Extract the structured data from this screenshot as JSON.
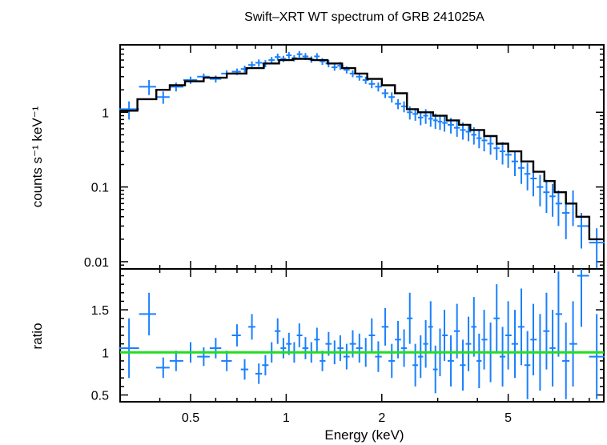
{
  "chart_data": [
    {
      "type": "scatter",
      "title": "Swift–XRT WT spectrum of GRB 241025A",
      "ylabel": "counts s⁻¹ keV⁻¹",
      "xscale": "log",
      "yscale": "log",
      "xlim": [
        0.3,
        10
      ],
      "ylim": [
        0.008,
        8
      ],
      "yticks": [
        {
          "value": 1,
          "label": "1"
        },
        {
          "value": 0.1,
          "label": "0.1"
        },
        {
          "value": 0.01,
          "label": "0.01"
        }
      ],
      "series": [
        {
          "type": "errorbar",
          "color": "#1a80ff",
          "x": [
            0.32,
            0.37,
            0.41,
            0.45,
            0.5,
            0.55,
            0.6,
            0.65,
            0.7,
            0.74,
            0.78,
            0.82,
            0.86,
            0.9,
            0.94,
            0.98,
            1.02,
            1.06,
            1.1,
            1.15,
            1.2,
            1.25,
            1.3,
            1.36,
            1.42,
            1.48,
            1.55,
            1.62,
            1.7,
            1.78,
            1.86,
            1.95,
            2.05,
            2.15,
            2.25,
            2.35,
            2.45,
            2.55,
            2.65,
            2.75,
            2.85,
            2.95,
            3.05,
            3.15,
            3.3,
            3.45,
            3.6,
            3.75,
            3.9,
            4.05,
            4.2,
            4.4,
            4.6,
            4.8,
            5.0,
            5.25,
            5.5,
            5.75,
            6.0,
            6.3,
            6.6,
            6.9,
            7.2,
            7.6,
            8.0,
            8.5,
            9.5
          ],
          "y": [
            1.1,
            2.2,
            1.6,
            2.2,
            2.7,
            3.0,
            2.8,
            3.3,
            3.5,
            3.8,
            4.3,
            4.6,
            4.5,
            5.0,
            5.5,
            5.2,
            5.8,
            5.3,
            6.0,
            5.6,
            5.1,
            5.6,
            4.8,
            4.5,
            4.0,
            4.2,
            3.7,
            3.3,
            3.0,
            2.7,
            2.4,
            2.2,
            1.8,
            1.6,
            1.3,
            1.2,
            1.0,
            0.95,
            0.85,
            0.9,
            0.82,
            0.78,
            0.75,
            0.72,
            0.68,
            0.62,
            0.58,
            0.55,
            0.5,
            0.45,
            0.42,
            0.38,
            0.33,
            0.3,
            0.27,
            0.22,
            0.18,
            0.15,
            0.13,
            0.1,
            0.085,
            0.075,
            0.06,
            0.045,
            0.06,
            0.03,
            0.018
          ],
          "yerr": [
            0.3,
            0.5,
            0.3,
            0.3,
            0.3,
            0.3,
            0.3,
            0.35,
            0.35,
            0.4,
            0.5,
            0.5,
            0.5,
            0.5,
            0.6,
            0.5,
            0.6,
            0.5,
            0.6,
            0.6,
            0.5,
            0.6,
            0.5,
            0.5,
            0.4,
            0.5,
            0.4,
            0.35,
            0.35,
            0.3,
            0.3,
            0.3,
            0.25,
            0.25,
            0.2,
            0.2,
            0.2,
            0.18,
            0.18,
            0.2,
            0.18,
            0.18,
            0.17,
            0.17,
            0.16,
            0.15,
            0.15,
            0.14,
            0.13,
            0.12,
            0.12,
            0.11,
            0.1,
            0.1,
            0.09,
            0.08,
            0.07,
            0.06,
            0.055,
            0.045,
            0.04,
            0.035,
            0.03,
            0.025,
            0.03,
            0.015,
            0.01
          ]
        },
        {
          "type": "step",
          "color": "#000000",
          "x": [
            0.3,
            0.34,
            0.39,
            0.43,
            0.48,
            0.55,
            0.65,
            0.75,
            0.85,
            0.95,
            1.05,
            1.2,
            1.35,
            1.5,
            1.65,
            1.8,
            2.0,
            2.2,
            2.4,
            2.6,
            2.9,
            3.2,
            3.5,
            3.8,
            4.2,
            4.6,
            5.0,
            5.5,
            6.0,
            6.5,
            7.0,
            7.6,
            8.2,
            9.0,
            10.0
          ],
          "y": [
            1.05,
            1.5,
            2.0,
            2.3,
            2.6,
            2.9,
            3.3,
            3.9,
            4.5,
            5.0,
            5.2,
            5.0,
            4.5,
            3.9,
            3.3,
            2.8,
            2.3,
            1.8,
            1.1,
            1.0,
            0.9,
            0.78,
            0.68,
            0.58,
            0.48,
            0.38,
            0.3,
            0.22,
            0.16,
            0.12,
            0.085,
            0.06,
            0.04,
            0.02,
            0.02
          ]
        }
      ]
    },
    {
      "type": "scatter",
      "xlabel": "Energy (keV)",
      "ylabel": "ratio",
      "xscale": "log",
      "xlim": [
        0.3,
        10
      ],
      "ylim": [
        0.42,
        1.98
      ],
      "xticks": [
        {
          "value": 0.5,
          "label": "0.5"
        },
        {
          "value": 1,
          "label": "1"
        },
        {
          "value": 2,
          "label": "2"
        },
        {
          "value": 5,
          "label": "5"
        }
      ],
      "yticks": [
        {
          "value": 0.5,
          "label": "0.5"
        },
        {
          "value": 1,
          "label": "1"
        },
        {
          "value": 1.5,
          "label": "1.5"
        }
      ],
      "reference_line": {
        "y": 1,
        "color": "#22dd22"
      },
      "series": [
        {
          "type": "errorbar",
          "color": "#1a80ff",
          "x": [
            0.32,
            0.37,
            0.41,
            0.45,
            0.5,
            0.55,
            0.6,
            0.65,
            0.7,
            0.74,
            0.78,
            0.82,
            0.86,
            0.9,
            0.94,
            0.98,
            1.02,
            1.06,
            1.1,
            1.15,
            1.2,
            1.25,
            1.3,
            1.36,
            1.42,
            1.48,
            1.55,
            1.62,
            1.7,
            1.78,
            1.86,
            1.95,
            2.05,
            2.15,
            2.25,
            2.35,
            2.45,
            2.55,
            2.65,
            2.75,
            2.85,
            2.95,
            3.05,
            3.15,
            3.3,
            3.45,
            3.6,
            3.75,
            3.9,
            4.05,
            4.2,
            4.4,
            4.6,
            4.8,
            5.0,
            5.25,
            5.5,
            5.75,
            6.0,
            6.3,
            6.6,
            6.9,
            7.2,
            7.6,
            8.0,
            8.5,
            9.5
          ],
          "y": [
            1.05,
            1.45,
            0.82,
            0.9,
            1.0,
            0.95,
            1.05,
            0.9,
            1.2,
            0.8,
            1.3,
            0.75,
            0.85,
            1.0,
            1.25,
            1.05,
            1.1,
            1.0,
            1.2,
            1.05,
            1.0,
            1.15,
            0.9,
            1.1,
            1.0,
            1.05,
            0.95,
            1.1,
            1.05,
            1.0,
            1.2,
            0.95,
            1.3,
            0.9,
            1.15,
            1.05,
            1.4,
            0.85,
            0.95,
            1.1,
            1.3,
            0.8,
            1.0,
            1.2,
            0.9,
            1.25,
            0.85,
            1.1,
            1.3,
            0.9,
            1.15,
            1.0,
            1.4,
            0.95,
            1.2,
            1.1,
            1.3,
            0.85,
            1.15,
            1.0,
            1.25,
            1.05,
            1.45,
            0.9,
            1.1,
            1.9,
            0.95
          ],
          "yerr": [
            0.35,
            0.25,
            0.12,
            0.12,
            0.12,
            0.11,
            0.12,
            0.12,
            0.13,
            0.12,
            0.15,
            0.12,
            0.12,
            0.12,
            0.15,
            0.12,
            0.13,
            0.12,
            0.14,
            0.13,
            0.12,
            0.14,
            0.12,
            0.14,
            0.14,
            0.15,
            0.15,
            0.16,
            0.17,
            0.17,
            0.2,
            0.18,
            0.22,
            0.2,
            0.22,
            0.22,
            0.3,
            0.25,
            0.25,
            0.28,
            0.3,
            0.28,
            0.28,
            0.3,
            0.3,
            0.32,
            0.3,
            0.32,
            0.35,
            0.32,
            0.35,
            0.35,
            0.4,
            0.35,
            0.4,
            0.4,
            0.45,
            0.4,
            0.42,
            0.45,
            0.45,
            0.45,
            0.5,
            0.45,
            0.5,
            0.6,
            0.5
          ]
        }
      ]
    }
  ]
}
